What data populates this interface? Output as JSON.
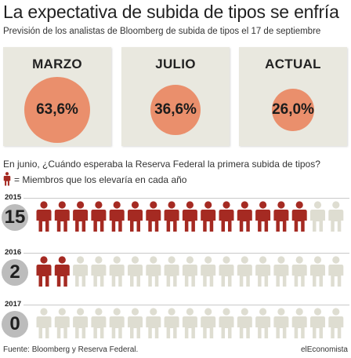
{
  "header": {
    "title": "La expectativa de subida de tipos se enfría",
    "subtitle": "Previsión de los analistas de Bloomberg de subida de tipos el 17 de septiembre"
  },
  "cards": [
    {
      "label": "MARZO",
      "value_text": "63,6%"
    },
    {
      "label": "JULIO",
      "value_text": "36,6%"
    },
    {
      "label": "ACTUAL",
      "value_text": "26,0%"
    }
  ],
  "question": "En junio, ¿Cuándo esperaba la Reserva Federal la primera subida de tipos?",
  "legend": {
    "text": "= Miembros que los elevaría en cada año"
  },
  "rows": [
    {
      "year": "2015",
      "count_text": "15"
    },
    {
      "year": "2016",
      "count_text": "2"
    },
    {
      "year": "2017",
      "count_text": "0"
    }
  ],
  "footer": {
    "source": "Fuente: Bloomberg y Reserva Federal.",
    "brand": "elEconomista"
  },
  "colors": {
    "card_bg": "#e9e8df",
    "circle": "#ea8f6c",
    "person_active": "#a52a22",
    "person_inactive": "#deddd1",
    "badge": "#bcbcbc"
  },
  "chart_data": [
    {
      "type": "bar",
      "categories": [
        "MARZO",
        "JULIO",
        "ACTUAL"
      ],
      "values": [
        63.6,
        36.6,
        26.0
      ],
      "unit": "%"
    },
    {
      "type": "bar",
      "categories": [
        "2015",
        "2016",
        "2017"
      ],
      "values": [
        15,
        2,
        0
      ],
      "icons_per_row": 17
    }
  ]
}
